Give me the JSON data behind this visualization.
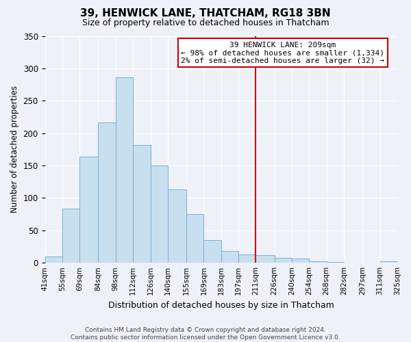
{
  "title": "39, HENWICK LANE, THATCHAM, RG18 3BN",
  "subtitle": "Size of property relative to detached houses in Thatcham",
  "xlabel": "Distribution of detached houses by size in Thatcham",
  "ylabel": "Number of detached properties",
  "bin_labels": [
    "41sqm",
    "55sqm",
    "69sqm",
    "84sqm",
    "98sqm",
    "112sqm",
    "126sqm",
    "140sqm",
    "155sqm",
    "169sqm",
    "183sqm",
    "197sqm",
    "211sqm",
    "226sqm",
    "240sqm",
    "254sqm",
    "268sqm",
    "282sqm",
    "297sqm",
    "311sqm",
    "325sqm"
  ],
  "bar_values": [
    10,
    84,
    164,
    217,
    286,
    182,
    150,
    113,
    75,
    35,
    18,
    13,
    12,
    8,
    6,
    2,
    1,
    0,
    0,
    2
  ],
  "bar_color": "#c8dff0",
  "bar_edge_color": "#7ab0d4",
  "vline_x": 211,
  "vline_color": "#cc0000",
  "bin_edges": [
    41,
    55,
    69,
    84,
    98,
    112,
    126,
    140,
    155,
    169,
    183,
    197,
    211,
    226,
    240,
    254,
    268,
    282,
    297,
    311,
    325
  ],
  "ylim": [
    0,
    350
  ],
  "yticks": [
    0,
    50,
    100,
    150,
    200,
    250,
    300,
    350
  ],
  "annotation_text": "39 HENWICK LANE: 209sqm\n← 98% of detached houses are smaller (1,334)\n2% of semi-detached houses are larger (32) →",
  "annotation_box_color": "#ffffff",
  "annotation_box_edge_color": "#cc0000",
  "footer_text": "Contains HM Land Registry data © Crown copyright and database right 2024.\nContains public sector information licensed under the Open Government Licence v3.0.",
  "background_color": "#eef1f8",
  "grid_color": "#ffffff"
}
